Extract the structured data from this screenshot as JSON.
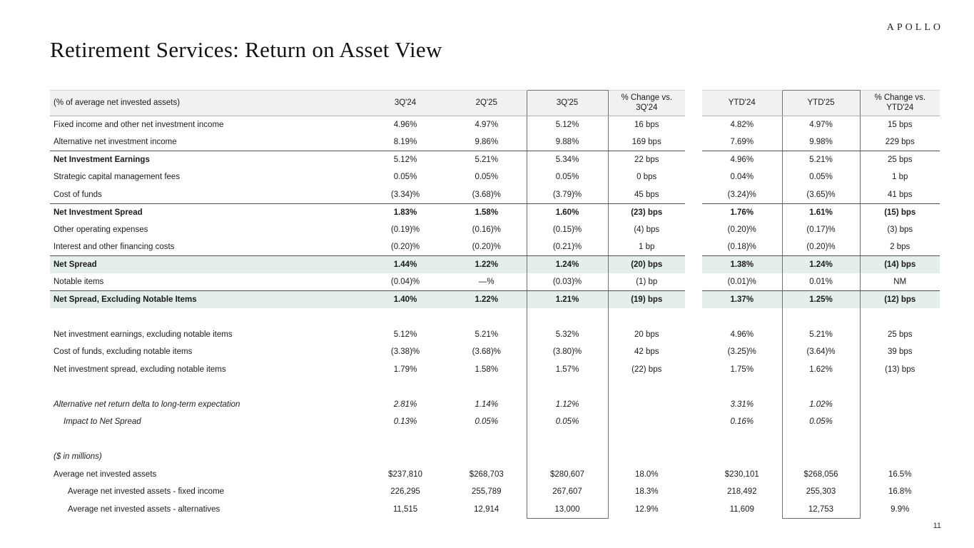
{
  "logo_text": "APOLLO",
  "page_title": "Retirement Services: Return on Asset View",
  "page_number": "11",
  "colors": {
    "header_band": "#f1f1ef",
    "highlight_green": "#e4efe9",
    "rule_dark": "#4f4f4f",
    "box_border": "#6f6f6f"
  },
  "table": {
    "columns": [
      "(% of average net invested assets)",
      "3Q'24",
      "2Q'25",
      "3Q'25",
      "% Change vs.\n3Q'24",
      "YTD'24",
      "YTD'25",
      "% Change vs.\nYTD'24"
    ],
    "rows": [
      {
        "label": "Fixed income and other net investment income",
        "values": [
          "4.96%",
          "4.97%",
          "5.12%",
          "16 bps",
          "4.82%",
          "4.97%",
          "15 bps"
        ]
      },
      {
        "label": "Alternative net investment income",
        "rule": true,
        "values": [
          "8.19%",
          "9.86%",
          "9.88%",
          "169 bps",
          "7.69%",
          "9.98%",
          "229 bps"
        ]
      },
      {
        "label": "Net Investment Earnings",
        "bold_label": true,
        "values": [
          "5.12%",
          "5.21%",
          "5.34%",
          "22 bps",
          "4.96%",
          "5.21%",
          "25 bps"
        ]
      },
      {
        "label": "Strategic capital management fees",
        "values": [
          "0.05%",
          "0.05%",
          "0.05%",
          "0 bps",
          "0.04%",
          "0.05%",
          "1 bp"
        ]
      },
      {
        "label": "Cost of funds",
        "rule": true,
        "values": [
          "(3.34)%",
          "(3.68)%",
          "(3.79)%",
          "45 bps",
          "(3.24)%",
          "(3.65)%",
          "41 bps"
        ]
      },
      {
        "label": "Net Investment Spread",
        "bold_all": true,
        "values": [
          "1.83%",
          "1.58%",
          "1.60%",
          "(23) bps",
          "1.76%",
          "1.61%",
          "(15) bps"
        ]
      },
      {
        "label": "Other operating expenses",
        "values": [
          "(0.19)%",
          "(0.16)%",
          "(0.15)%",
          "(4) bps",
          "(0.20)%",
          "(0.17)%",
          "(3) bps"
        ]
      },
      {
        "label": "Interest and other financing costs",
        "rule": true,
        "values": [
          "(0.20)%",
          "(0.20)%",
          "(0.21)%",
          "1 bp",
          "(0.18)%",
          "(0.20)%",
          "2 bps"
        ]
      },
      {
        "label": "Net Spread",
        "bold_all": true,
        "green": true,
        "values": [
          "1.44%",
          "1.22%",
          "1.24%",
          "(20) bps",
          "1.38%",
          "1.24%",
          "(14) bps"
        ]
      },
      {
        "label": "Notable items",
        "rule": true,
        "values": [
          "(0.04)%",
          "—%",
          "(0.03)%",
          "(1) bp",
          "(0.01)%",
          "0.01%",
          "NM"
        ]
      },
      {
        "label": "Net Spread, Excluding Notable Items",
        "bold_all": true,
        "green": true,
        "values": [
          "1.40%",
          "1.22%",
          "1.21%",
          "(19) bps",
          "1.37%",
          "1.25%",
          "(12) bps"
        ]
      },
      {
        "spacer": 24
      },
      {
        "label": "Net investment earnings, excluding notable items",
        "values": [
          "5.12%",
          "5.21%",
          "5.32%",
          "20 bps",
          "4.96%",
          "5.21%",
          "25 bps"
        ]
      },
      {
        "label": "Cost of funds, excluding notable items",
        "values": [
          "(3.38)%",
          "(3.68)%",
          "(3.80)%",
          "42 bps",
          "(3.25)%",
          "(3.64)%",
          "39 bps"
        ]
      },
      {
        "label": "Net investment spread, excluding notable items",
        "values": [
          "1.79%",
          "1.58%",
          "1.57%",
          "(22) bps",
          "1.75%",
          "1.62%",
          "(13) bps"
        ]
      },
      {
        "spacer": 8
      },
      {
        "label": "Alternative net return delta to long-term expectation",
        "italic": true,
        "values": [
          "2.81%",
          "1.14%",
          "1.12%",
          "",
          "3.31%",
          "1.02%",
          ""
        ]
      },
      {
        "label": "Impact to Net Spread",
        "italic": true,
        "indent": 14,
        "values": [
          "0.13%",
          "0.05%",
          "0.05%",
          "",
          "0.16%",
          "0.05%",
          ""
        ]
      },
      {
        "spacer": 8
      },
      {
        "label": "($ in millions)",
        "italic": true,
        "values": [
          "",
          "",
          "",
          "",
          "",
          "",
          ""
        ]
      },
      {
        "label": "Average net invested assets",
        "values": [
          "$237,810",
          "$268,703",
          "$280,607",
          "18.0%",
          "$230,101",
          "$268,056",
          "16.5%"
        ]
      },
      {
        "label": "Average net invested assets - fixed income",
        "indent": 20,
        "values": [
          "226,295",
          "255,789",
          "267,607",
          "18.3%",
          "218,492",
          "255,303",
          "16.8%"
        ]
      },
      {
        "label": "Average net invested assets - alternatives",
        "indent": 20,
        "box_bottom": true,
        "values": [
          "11,515",
          "12,914",
          "13,000",
          "12.9%",
          "11,609",
          "12,753",
          "9.9%"
        ]
      }
    ]
  }
}
